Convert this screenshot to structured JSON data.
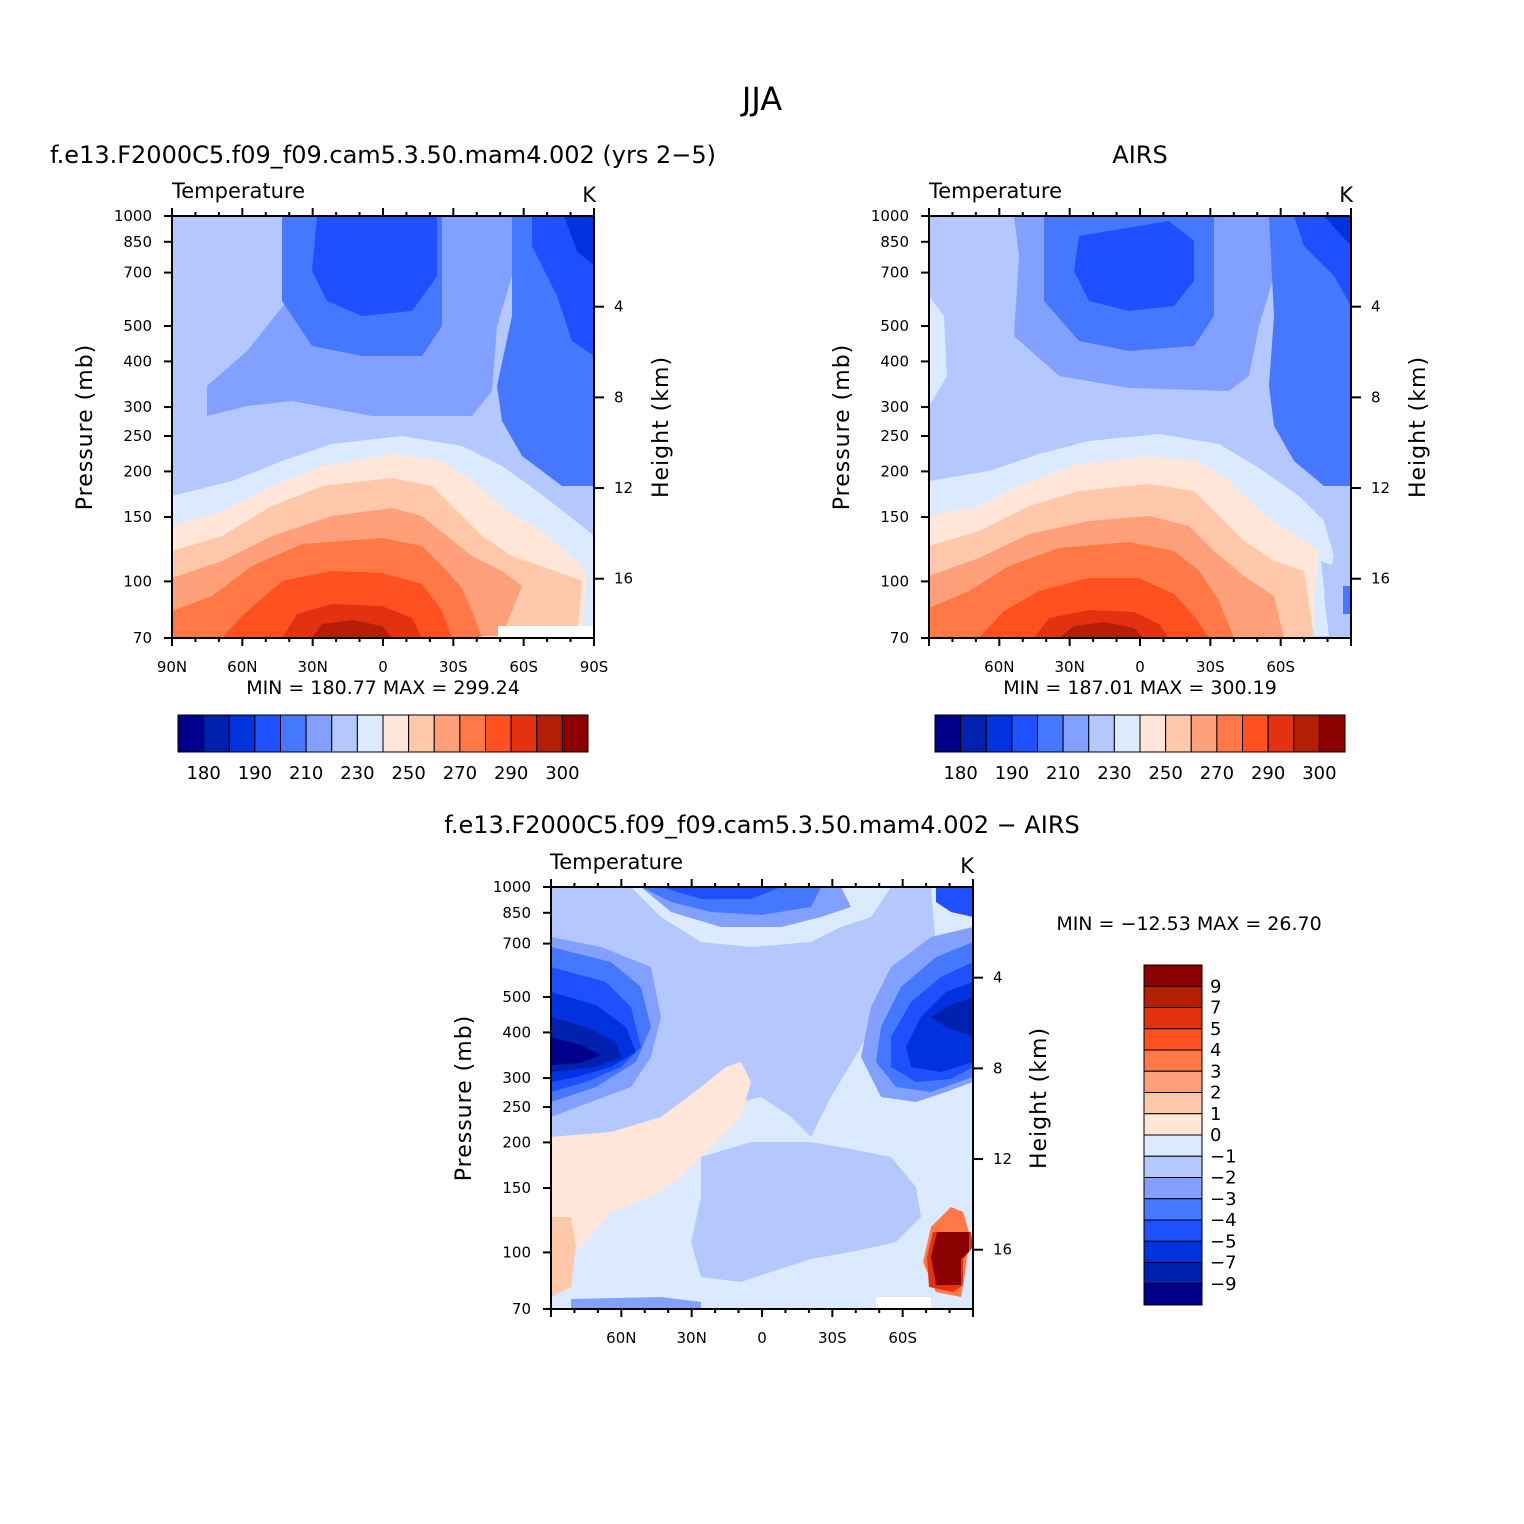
{
  "figure": {
    "super_title": "JJA"
  },
  "palette": {
    "main": [
      "#00008b",
      "#0020b0",
      "#0032dd",
      "#1e50ff",
      "#4678ff",
      "#82a0ff",
      "#b4c8ff",
      "#dceaff",
      "#ffe6d8",
      "#ffc8aa",
      "#ffa07a",
      "#ff7846",
      "#ff5020",
      "#e43210",
      "#b41e05",
      "#8b0000"
    ],
    "diff": [
      "#00008b",
      "#0020b0",
      "#0032dd",
      "#1e50ff",
      "#4678ff",
      "#82a0ff",
      "#b4c8ff",
      "#dceaff",
      "#ffe6d8",
      "#ffc8aa",
      "#ffa07a",
      "#ff7846",
      "#ff5020",
      "#e43210",
      "#b41e05",
      "#8b0000"
    ]
  },
  "chart_data": [
    {
      "id": "model",
      "type": "contour",
      "title": "f.e13.F2000C5.f09_f09.cam5.3.50.mam4.002 (yrs 2−5)",
      "left_string": "Temperature",
      "right_string": "K",
      "xlabel": "",
      "ylabel": "Pressure (mb)",
      "ylabel_right": "Height (km)",
      "x_ticks": [
        "90N",
        "60N",
        "30N",
        "0",
        "30S",
        "60S",
        "90S"
      ],
      "x_tick_values": [
        90,
        60,
        30,
        0,
        -30,
        -60,
        -90
      ],
      "xlim": [
        90,
        -90
      ],
      "y_ticks": [
        70,
        100,
        150,
        200,
        250,
        300,
        400,
        500,
        700,
        850,
        1000
      ],
      "ylim": [
        1000,
        70
      ],
      "y_scale": "log",
      "height_ticks": [
        4,
        8,
        12,
        16
      ],
      "stats": "MIN =  180.77   MAX =  299.24",
      "min": 180.77,
      "max": 299.24,
      "colorbar_labels": [
        "180",
        "190",
        "210",
        "230",
        "250",
        "270",
        "290",
        "300"
      ]
    },
    {
      "id": "obs",
      "type": "contour",
      "title": "AIRS",
      "left_string": "Temperature",
      "right_string": "K",
      "xlabel": "",
      "ylabel": "Pressure (mb)",
      "ylabel_right": "Height (km)",
      "x_ticks": [
        "60N",
        "30N",
        "0",
        "30S",
        "60S"
      ],
      "x_tick_values": [
        60,
        30,
        0,
        -30,
        -60
      ],
      "xlim": [
        90,
        -90
      ],
      "y_ticks": [
        70,
        100,
        150,
        200,
        250,
        300,
        400,
        500,
        700,
        850,
        1000
      ],
      "ylim": [
        1000,
        70
      ],
      "y_scale": "log",
      "height_ticks": [
        4,
        8,
        12,
        16
      ],
      "stats": "MIN =  187.01   MAX =  300.19",
      "min": 187.01,
      "max": 300.19,
      "colorbar_labels": [
        "180",
        "190",
        "210",
        "230",
        "250",
        "270",
        "290",
        "300"
      ]
    },
    {
      "id": "diff",
      "type": "contour",
      "title": "f.e13.F2000C5.f09_f09.cam5.3.50.mam4.002 − AIRS",
      "left_string": "Temperature",
      "right_string": "K",
      "xlabel": "",
      "ylabel": "Pressure (mb)",
      "ylabel_right": "Height (km)",
      "x_ticks": [
        "60N",
        "30N",
        "0",
        "30S",
        "60S"
      ],
      "x_tick_values": [
        60,
        30,
        0,
        -30,
        -60
      ],
      "xlim": [
        90,
        -90
      ],
      "y_ticks": [
        70,
        100,
        150,
        200,
        250,
        300,
        400,
        500,
        700,
        850,
        1000
      ],
      "ylim": [
        1000,
        70
      ],
      "y_scale": "log",
      "height_ticks": [
        4,
        8,
        12,
        16
      ],
      "stats": "MIN = −12.53   MAX =   26.70",
      "min": -12.53,
      "max": 26.7,
      "colorbar_labels": [
        "9",
        "7",
        "5",
        "4",
        "3",
        "2",
        "1",
        "0",
        "−1",
        "−2",
        "−3",
        "−4",
        "−5",
        "−7",
        "−9"
      ]
    }
  ]
}
